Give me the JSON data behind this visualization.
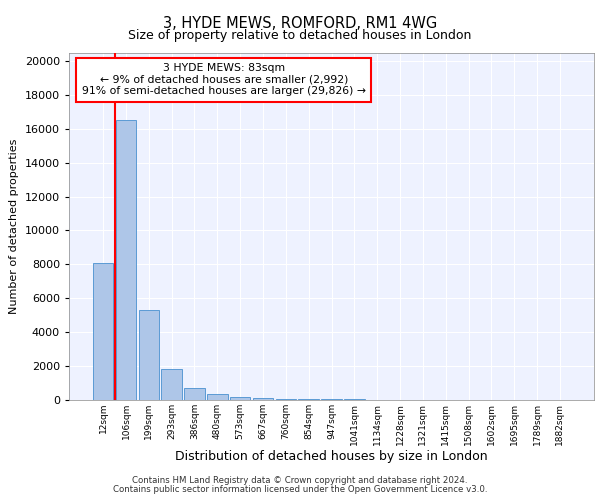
{
  "title1": "3, HYDE MEWS, ROMFORD, RM1 4WG",
  "title2": "Size of property relative to detached houses in London",
  "xlabel": "Distribution of detached houses by size in London",
  "ylabel": "Number of detached properties",
  "bar_labels": [
    "12sqm",
    "106sqm",
    "199sqm",
    "293sqm",
    "386sqm",
    "480sqm",
    "573sqm",
    "667sqm",
    "760sqm",
    "854sqm",
    "947sqm",
    "1041sqm",
    "1134sqm",
    "1228sqm",
    "1321sqm",
    "1415sqm",
    "1508sqm",
    "1602sqm",
    "1695sqm",
    "1789sqm",
    "1882sqm"
  ],
  "bar_values": [
    8100,
    16500,
    5300,
    1800,
    700,
    350,
    200,
    120,
    80,
    60,
    45,
    30,
    25,
    20,
    15,
    12,
    10,
    8,
    7,
    5,
    3
  ],
  "bar_color": "#aec6e8",
  "bar_edge_color": "#5b9bd5",
  "annotation_text": "3 HYDE MEWS: 83sqm\n← 9% of detached houses are smaller (2,992)\n91% of semi-detached houses are larger (29,826) →",
  "annotation_box_color": "white",
  "annotation_box_edge_color": "red",
  "vline_x": 0.5,
  "vline_color": "red",
  "ylim": [
    0,
    20500
  ],
  "yticks": [
    0,
    2000,
    4000,
    6000,
    8000,
    10000,
    12000,
    14000,
    16000,
    18000,
    20000
  ],
  "footer1": "Contains HM Land Registry data © Crown copyright and database right 2024.",
  "footer2": "Contains public sector information licensed under the Open Government Licence v3.0.",
  "plot_background": "#eef2ff"
}
